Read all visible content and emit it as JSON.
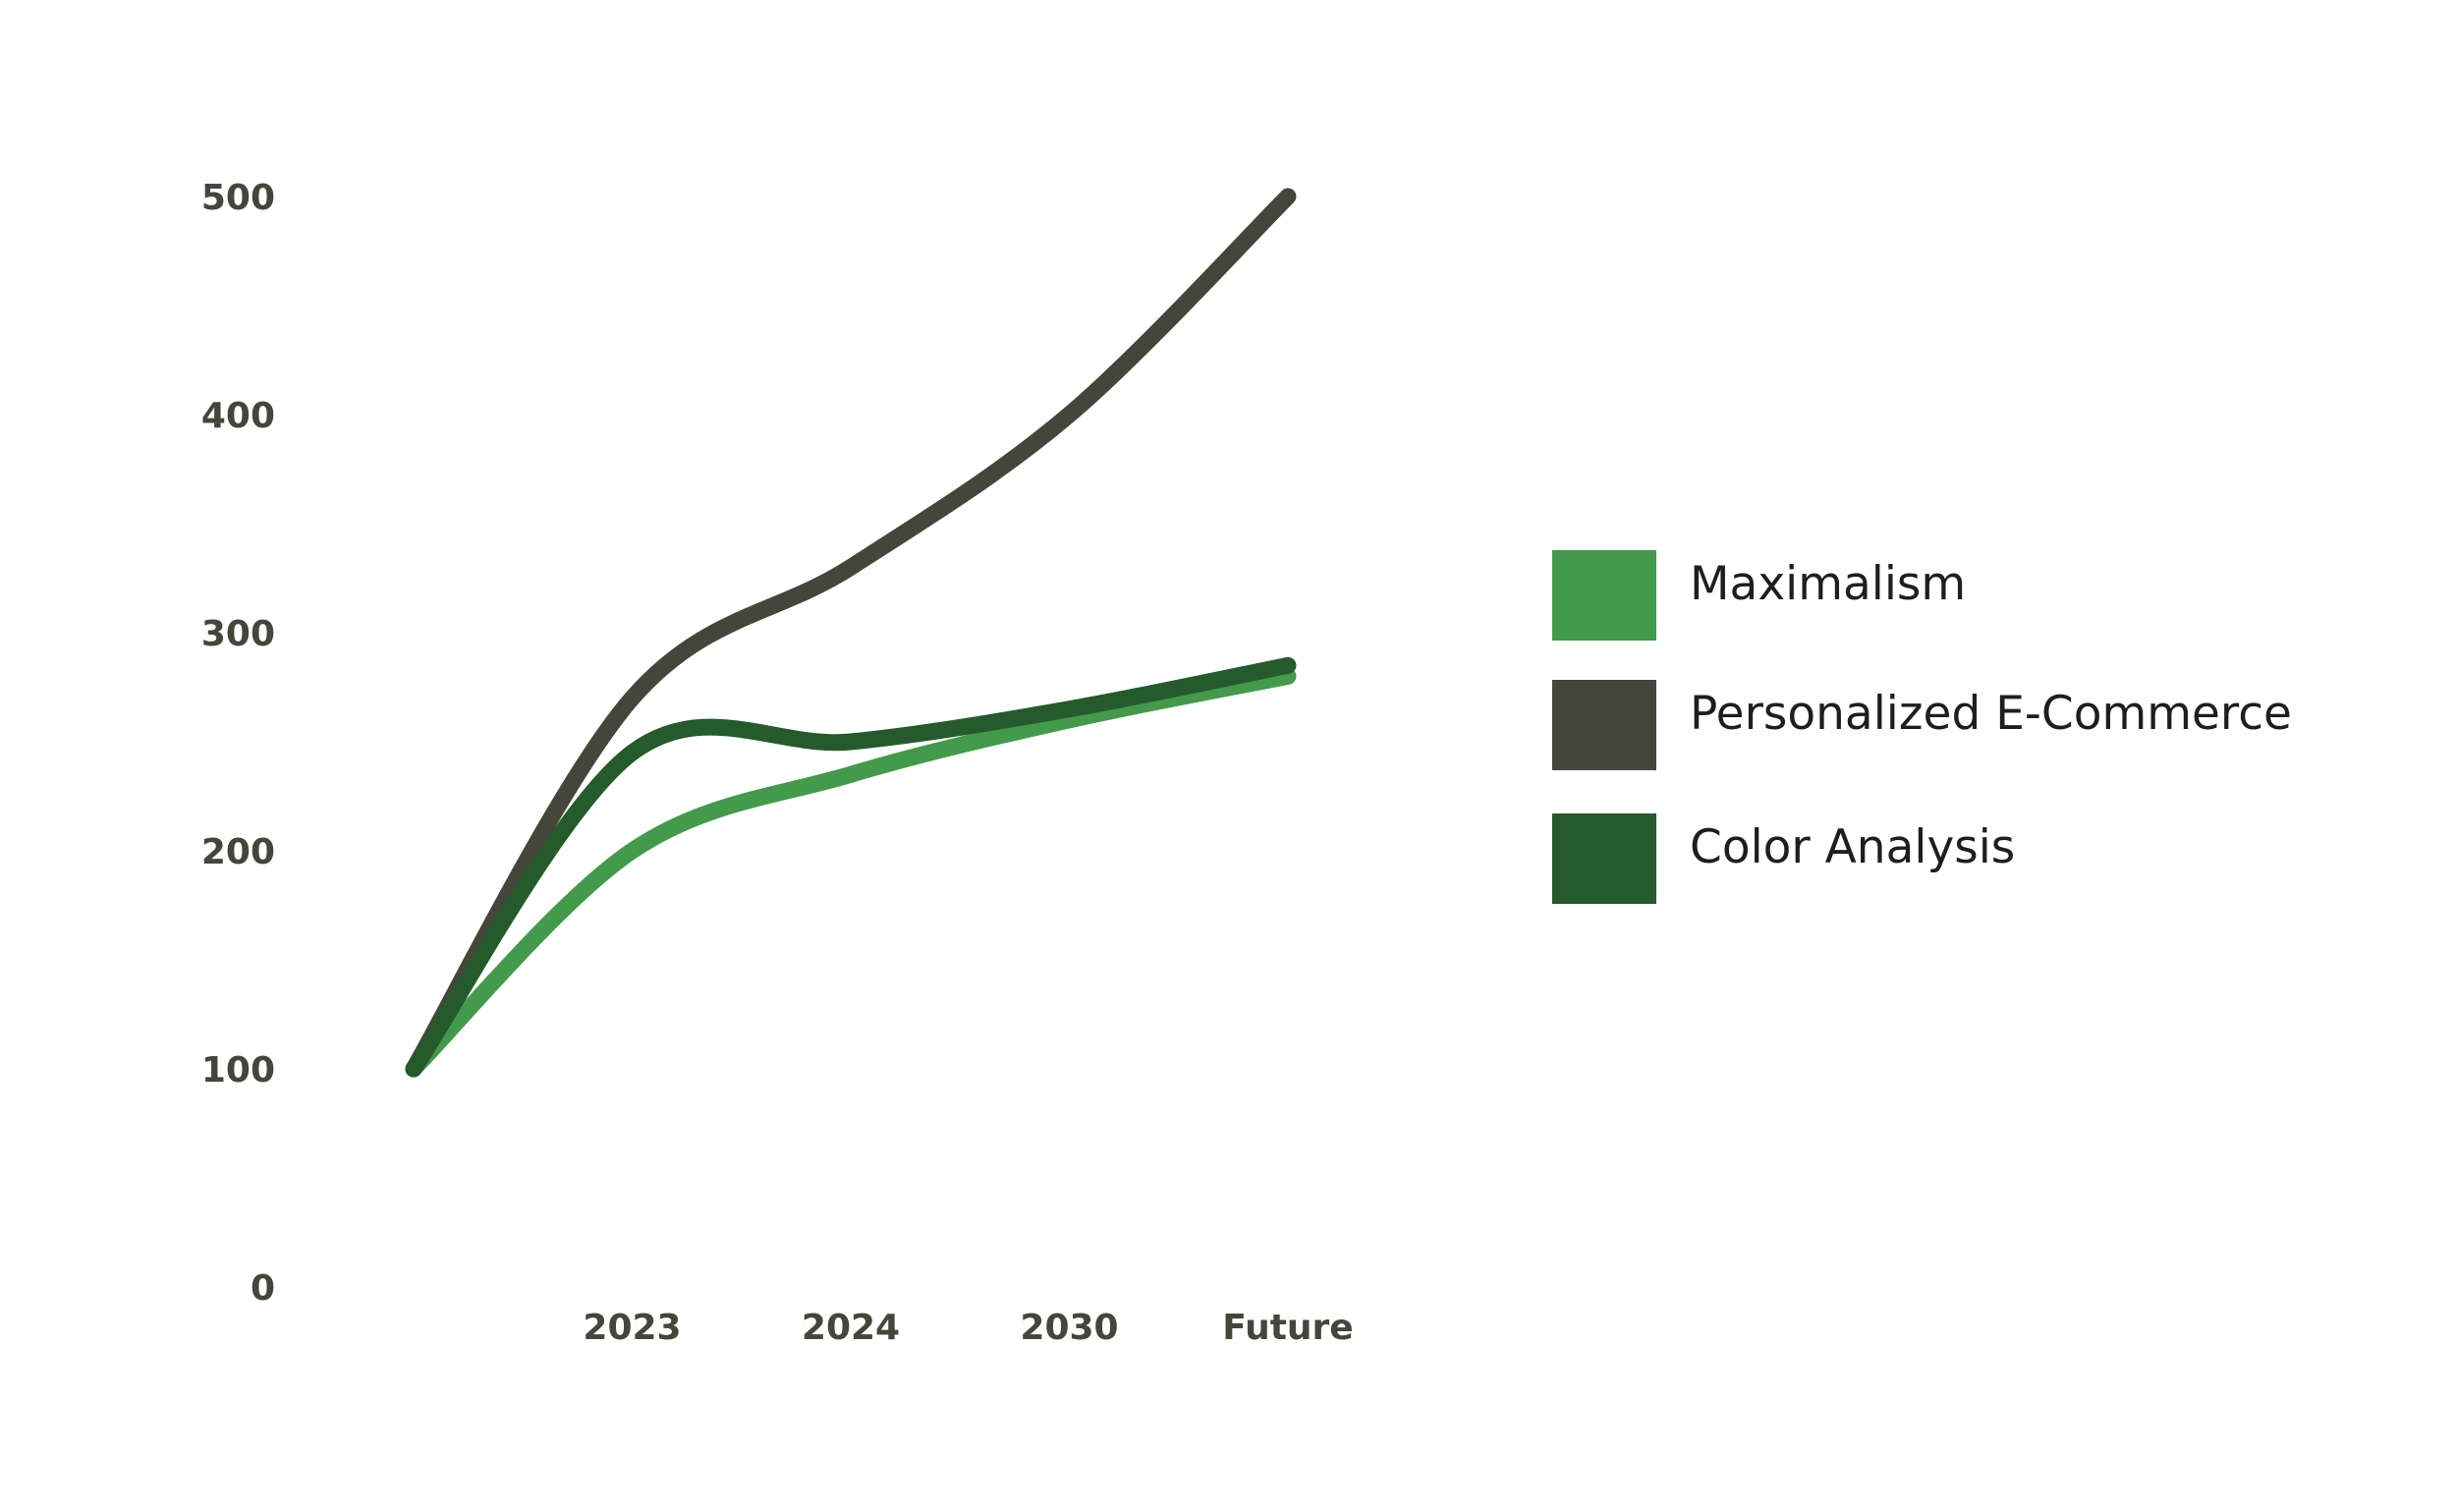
{
  "chart_data": {
    "type": "line",
    "categories": [
      "",
      "2023",
      "2024",
      "2030",
      "Future"
    ],
    "yticks": [
      0,
      100,
      200,
      300,
      400,
      500
    ],
    "ylim": [
      0,
      500
    ],
    "grid": false,
    "legend_position": "right",
    "series": [
      {
        "name": "Maximalism",
        "color": "#439a4b",
        "values": [
          100,
          200,
          235,
          260,
          280
        ]
      },
      {
        "name": "Personalized E-Commerce",
        "color": "#45463a",
        "values": [
          100,
          270,
          330,
          400,
          500
        ]
      },
      {
        "name": "Color Analysis",
        "color": "#245a2c",
        "values": [
          100,
          245,
          250,
          265,
          285
        ]
      }
    ]
  }
}
